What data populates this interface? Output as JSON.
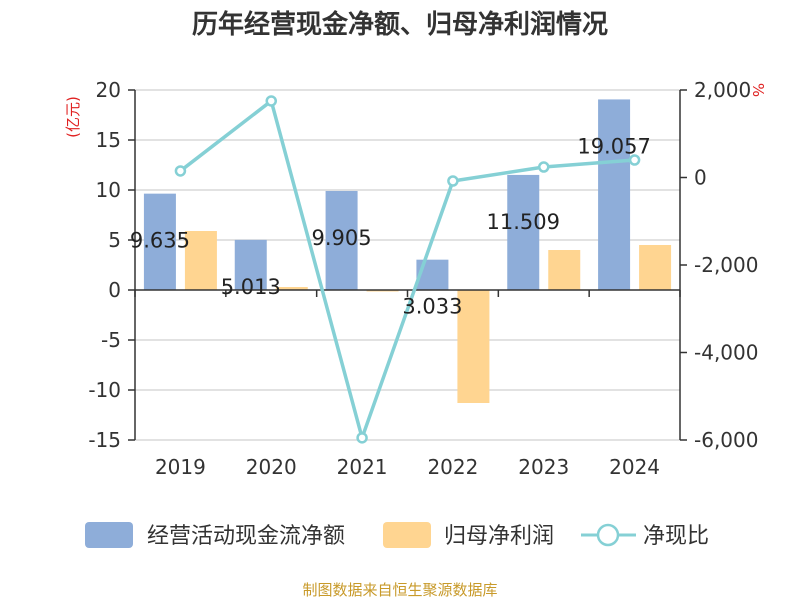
{
  "title": "历年经营现金净额、归母净利润情况",
  "source": "制图数据来自恒生聚源数据库",
  "units": {
    "left": "(亿元)",
    "right": "%"
  },
  "colors": {
    "cash": "#8eadd9",
    "profit": "#ffd591",
    "ratio": "#85d0d5",
    "axis": "#333333",
    "grid": "#d9d9d9"
  },
  "chart_data": {
    "type": "bar",
    "title": "历年经营现金净额、归母净利润情况",
    "categories": [
      "2019",
      "2020",
      "2021",
      "2022",
      "2023",
      "2024"
    ],
    "series": [
      {
        "key": "cash",
        "name": "经营活动现金流净额",
        "type": "bar",
        "axis": "left",
        "values": [
          9.635,
          5.013,
          9.905,
          3.033,
          11.509,
          19.057
        ]
      },
      {
        "key": "profit",
        "name": "归母净利润",
        "type": "bar",
        "axis": "left",
        "values": [
          5.9,
          0.3,
          -0.15,
          -11.3,
          4.0,
          4.5
        ]
      },
      {
        "key": "ratio",
        "name": "净现比",
        "type": "line",
        "axis": "right",
        "values": [
          150,
          1750,
          -5950,
          -80,
          240,
          400
        ]
      }
    ],
    "labels": [
      "9.635",
      "5.013",
      "9.905",
      "3.033",
      "11.509",
      "19.057"
    ],
    "yLeft": {
      "min": -15,
      "max": 20,
      "ticks": [
        20,
        15,
        10,
        5,
        0,
        -5,
        -10,
        -15
      ],
      "tickLabels": [
        "20",
        "15",
        "10",
        "5",
        "0",
        "-5",
        "-10",
        "-15"
      ]
    },
    "yRight": {
      "min": -6000,
      "max": 2000,
      "ticks": [
        2000,
        0,
        -2000,
        -4000,
        -6000
      ],
      "tickLabels": [
        "2,000",
        "0",
        "-2,000",
        "-4,000",
        "-6,000"
      ]
    },
    "legend": [
      "经营活动现金流净额",
      "归母净利润",
      "净现比"
    ],
    "legend_position": "bottom"
  }
}
